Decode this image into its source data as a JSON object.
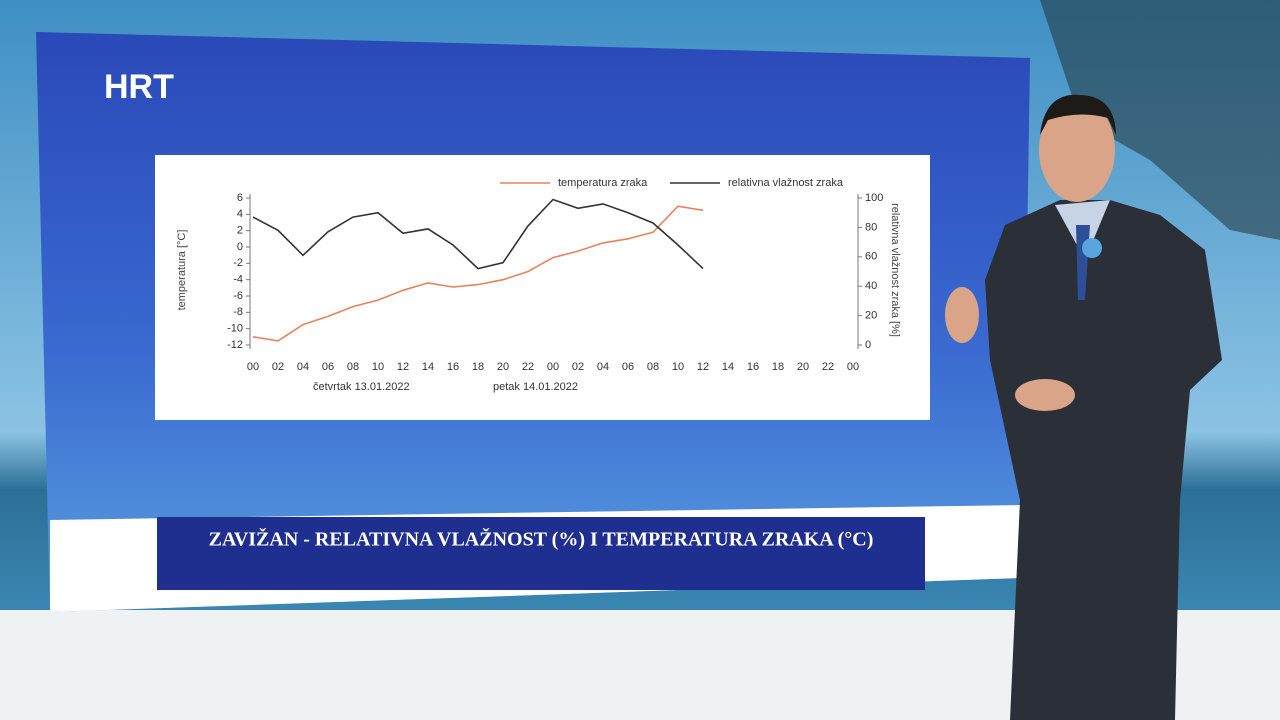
{
  "logo": "HRT",
  "chart_data": {
    "type": "line",
    "title": "ZAVIŽAN - RELATIVNA VLAŽNOST (%) I TEMPERATURA ZRAKA (°C)",
    "ylabel": "temperatura [°C]",
    "y2label": "relativna vlažnost zraka [%]",
    "day_labels": [
      "četvrtak 13.01.2022",
      "petak 14.01.2022"
    ],
    "legend": "top",
    "x": [
      0,
      2,
      4,
      6,
      8,
      10,
      12,
      14,
      16,
      18,
      20,
      22,
      24,
      26,
      28,
      30,
      32,
      34,
      36
    ],
    "xlim": [
      0,
      48
    ],
    "xticks": [
      {
        "value": 0,
        "label": "00"
      },
      {
        "value": 2,
        "label": "02"
      },
      {
        "value": 4,
        "label": "04"
      },
      {
        "value": 6,
        "label": "06"
      },
      {
        "value": 8,
        "label": "08"
      },
      10,
      12,
      14,
      16,
      18,
      20,
      22,
      {
        "value": 24,
        "label": "00"
      },
      {
        "value": 26,
        "label": "02"
      },
      {
        "value": 28,
        "label": "04"
      },
      {
        "value": 30,
        "label": "06"
      },
      {
        "value": 32,
        "label": "08"
      },
      {
        "value": 34,
        "label": "10"
      },
      {
        "value": 36,
        "label": "12"
      },
      {
        "value": 38,
        "label": "14"
      },
      {
        "value": 40,
        "label": "16"
      },
      {
        "value": 42,
        "label": "18"
      },
      {
        "value": 44,
        "label": "20"
      },
      {
        "value": 46,
        "label": "22"
      },
      {
        "value": 48,
        "label": "00"
      }
    ],
    "ylim": [
      -12,
      6
    ],
    "yticks": [
      -12,
      -10,
      -8,
      -6,
      -4,
      -2,
      0,
      2,
      4,
      6
    ],
    "y2lim": [
      0,
      100
    ],
    "y2ticks": [
      0,
      20,
      40,
      60,
      80,
      100
    ],
    "series": [
      {
        "name": "temperatura zraka",
        "color": "#e8825a",
        "values": [
          -11,
          -11.5,
          -9.5,
          -8.5,
          -7.3,
          -6.5,
          -5.3,
          -4.4,
          -4.9,
          -4.6,
          -4,
          -3,
          -1.3,
          -0.5,
          0.5,
          1,
          1.8,
          5,
          4.5
        ]
      },
      {
        "name": "relativna vlažnost zraka",
        "color": "#333333",
        "axis": "y2",
        "values": [
          87,
          78,
          61,
          77,
          87,
          90,
          76,
          79,
          68,
          52,
          56,
          81,
          99,
          93,
          96,
          90,
          83,
          68,
          52
        ]
      }
    ]
  }
}
